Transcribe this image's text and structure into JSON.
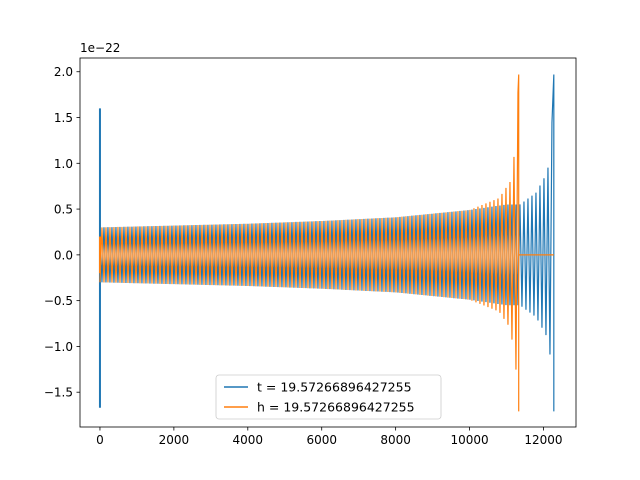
{
  "chart_data": {
    "type": "line",
    "title": "",
    "xlabel": "",
    "ylabel": "",
    "y_offset_label": "1e−22",
    "xlim": [
      -540,
      12880
    ],
    "ylim": [
      -1.88,
      2.15
    ],
    "xticks": [
      0,
      2000,
      4000,
      6000,
      8000,
      10000,
      12000
    ],
    "xtick_labels": [
      "0",
      "2000",
      "4000",
      "6000",
      "8000",
      "10000",
      "12000"
    ],
    "yticks": [
      -1.5,
      -1.0,
      -0.5,
      0.0,
      0.5,
      1.0,
      1.5,
      2.0
    ],
    "ytick_labels": [
      "−1.5",
      "−1.0",
      "−0.5",
      "0.0",
      "0.5",
      "1.0",
      "1.5",
      "2.0"
    ],
    "grid": false,
    "legend_position": "bottom-center",
    "series": [
      {
        "name": "t = 19.57266896427255",
        "color": "#1f77b4",
        "start_spike": {
          "x": 0,
          "max": 1.6,
          "min": -1.67
        },
        "envelope": {
          "x": [
            0,
            2000,
            4000,
            6000,
            8000,
            10000,
            11000,
            11350,
            11360,
            11800,
            12100,
            12200,
            12250,
            12280
          ],
          "amp": [
            0.3,
            0.32,
            0.34,
            0.37,
            0.41,
            0.49,
            0.55,
            0.55,
            0.55,
            0.68,
            0.9,
            1.15,
            1.65,
            1.97
          ]
        },
        "end_x": 12280,
        "peak": {
          "max": 1.97,
          "min": -1.71
        }
      },
      {
        "name": "h = 19.57266896427255",
        "color": "#ff7f0e",
        "start_spike": {
          "x": 0,
          "max": 0.2,
          "min": -0.2
        },
        "envelope": {
          "x": [
            0,
            2000,
            4000,
            6000,
            8000,
            10000,
            10800,
            11100,
            11250,
            11330
          ],
          "amp": [
            0.3,
            0.32,
            0.34,
            0.37,
            0.41,
            0.49,
            0.62,
            0.8,
            1.2,
            1.97
          ]
        },
        "end_x": 11330,
        "peak": {
          "max": 1.97,
          "min": -1.71
        },
        "tail": {
          "x": [
            11330,
            12280
          ],
          "y": 0.0
        }
      }
    ]
  }
}
